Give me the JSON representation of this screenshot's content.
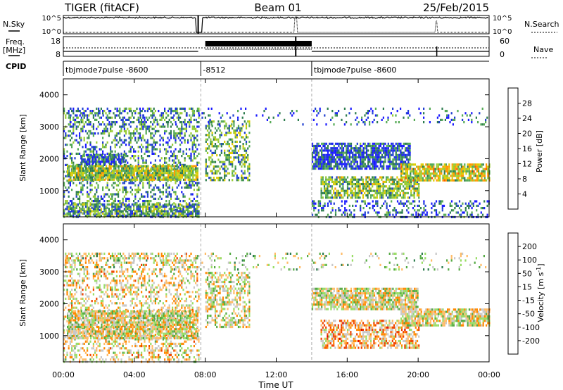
{
  "header": {
    "title_left": "TIGER (fitACF)",
    "title_center": "Beam 01",
    "title_right": "25/Feb/2015"
  },
  "noise_panel": {
    "left_label": "N.Sky",
    "right_label": "N.Search",
    "left_ticks": [
      "10^5",
      "10^0"
    ],
    "right_ticks": [
      "10^5",
      "10^0"
    ]
  },
  "freq_panel": {
    "left_label_line1": "Freq.",
    "left_label_line2": "[MHz]",
    "right_label": "Nave",
    "left_ticks": [
      "18",
      "8"
    ],
    "right_ticks": [
      "60",
      "0"
    ]
  },
  "cpid": {
    "label": "CPID",
    "segments": [
      {
        "label": "tbjmode7pulse -8600",
        "start_hour": 0.0
      },
      {
        "label": "-8512",
        "start_hour": 7.75
      },
      {
        "label": "tbjmode7pulse -8600",
        "start_hour": 14.0
      }
    ],
    "boundaries_hour": [
      7.75,
      14.0
    ]
  },
  "chart_data": [
    {
      "type": "heatmap",
      "panel": "power",
      "ylabel": "Slant Range [km]",
      "ylim": [
        180,
        4500
      ],
      "xlim_hours": [
        0,
        24
      ],
      "yticks": [
        1000,
        2000,
        3000,
        4000
      ],
      "colorbar": {
        "label": "Power [dB]",
        "ticks": [
          "28",
          "24",
          "20",
          "16",
          "12",
          "8",
          "4"
        ],
        "range": [
          0,
          30
        ],
        "colors": [
          "#1a1aff",
          "#2040d0",
          "#2e7d4f",
          "#55aa55",
          "#99cc33",
          "#ddcc00",
          "#ff9900",
          "#ff5500",
          "#ee0000"
        ]
      },
      "regions": [
        {
          "x0": 0.0,
          "x1": 7.6,
          "y0": 180,
          "y1": 3600,
          "density": 0.35,
          "level": 0.3
        },
        {
          "x0": 0.2,
          "x1": 7.6,
          "y0": 1350,
          "y1": 1800,
          "density": 0.85,
          "level": 0.5
        },
        {
          "x0": 0.0,
          "x1": 7.6,
          "y0": 200,
          "y1": 600,
          "density": 0.7,
          "level": 0.35
        },
        {
          "x0": 1.0,
          "x1": 3.5,
          "y0": 1850,
          "y1": 2150,
          "density": 0.7,
          "level": 0.2
        },
        {
          "x0": 8.0,
          "x1": 10.5,
          "y0": 1300,
          "y1": 3200,
          "density": 0.45,
          "level": 0.4
        },
        {
          "x0": 14.0,
          "x1": 19.5,
          "y0": 1700,
          "y1": 2500,
          "density": 0.8,
          "level": 0.2
        },
        {
          "x0": 14.5,
          "x1": 20.0,
          "y0": 800,
          "y1": 1450,
          "density": 0.7,
          "level": 0.45
        },
        {
          "x0": 19.0,
          "x1": 24.0,
          "y0": 1350,
          "y1": 1850,
          "density": 0.8,
          "level": 0.55
        },
        {
          "x0": 14.0,
          "x1": 24.0,
          "y0": 180,
          "y1": 700,
          "density": 0.3,
          "level": 0.2
        },
        {
          "x0": 0.2,
          "x1": 24.0,
          "y0": 3100,
          "y1": 3600,
          "density": 0.12,
          "level": 0.2
        }
      ]
    },
    {
      "type": "heatmap",
      "panel": "velocity",
      "ylabel": "Slant Range [km]",
      "ylim": [
        180,
        4500
      ],
      "xlim_hours": [
        0,
        24
      ],
      "yticks": [
        1000,
        2000,
        3000,
        4000
      ],
      "colorbar": {
        "label": "Velocity [m s^-1]",
        "label_main": "Velocity [m s",
        "label_sup": "-1",
        "label_end": "]",
        "ticks": [
          "200",
          "100",
          "50",
          "15",
          "-15",
          "-50",
          "-100",
          "-200"
        ],
        "range": [
          -250,
          250
        ],
        "colors": [
          "#2233cc",
          "#2e7d4f",
          "#55aa44",
          "#99dd66",
          "#c8c8c8",
          "#ffbb66",
          "#ff8800",
          "#ee4400",
          "#dd0000"
        ]
      },
      "regions": [
        {
          "x0": 0.0,
          "x1": 7.6,
          "y0": 180,
          "y1": 3600,
          "density": 0.35,
          "level": 0.55
        },
        {
          "x0": 0.2,
          "x1": 7.6,
          "y0": 900,
          "y1": 1800,
          "density": 0.8,
          "level": 0.5
        },
        {
          "x0": 8.0,
          "x1": 10.5,
          "y0": 1300,
          "y1": 3000,
          "density": 0.5,
          "level": 0.5
        },
        {
          "x0": 14.0,
          "x1": 20.0,
          "y0": 1800,
          "y1": 2500,
          "density": 0.8,
          "level": 0.5
        },
        {
          "x0": 14.5,
          "x1": 20.0,
          "y0": 600,
          "y1": 1500,
          "density": 0.6,
          "level": 0.65
        },
        {
          "x0": 19.0,
          "x1": 24.0,
          "y0": 1350,
          "y1": 1850,
          "density": 0.8,
          "level": 0.5
        },
        {
          "x0": 0.2,
          "x1": 24.0,
          "y0": 3100,
          "y1": 3600,
          "density": 0.12,
          "level": 0.4
        }
      ]
    }
  ],
  "x_axis": {
    "label": "Time UT",
    "ticks": [
      "00:00",
      "04:00",
      "08:00",
      "12:00",
      "16:00",
      "20:00",
      "00:00"
    ],
    "tick_hours": [
      0,
      4,
      8,
      12,
      16,
      20,
      24
    ]
  }
}
